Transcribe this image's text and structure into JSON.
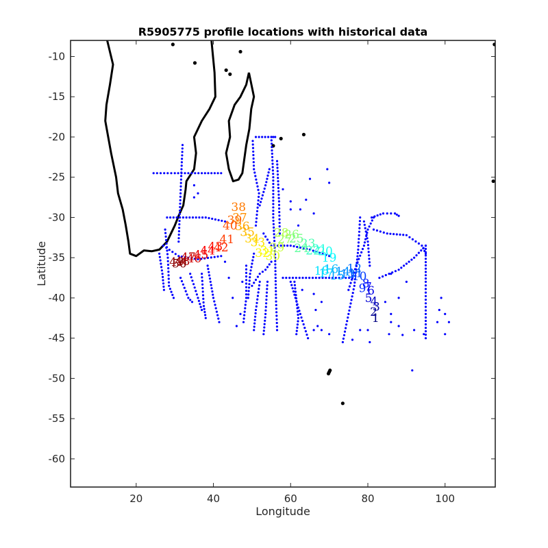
{
  "chart_data": {
    "type": "scatter",
    "title": "R5905775 profile locations with historical data",
    "xlabel": "Longitude",
    "ylabel": "Latitude",
    "xlim": [
      3,
      113
    ],
    "ylim": [
      -63.5,
      -8
    ],
    "xticks": [
      20,
      40,
      60,
      80,
      100
    ],
    "yticks": [
      -10,
      -15,
      -20,
      -25,
      -30,
      -35,
      -40,
      -45,
      -50,
      -55,
      -60
    ],
    "xtick_labels": [
      "20",
      "40",
      "60",
      "80",
      "100"
    ],
    "ytick_labels": [
      "-10",
      "-15",
      "-20",
      "-25",
      "-30",
      "-35",
      "-40",
      "-45",
      "-50",
      "-55",
      "-60"
    ],
    "grid": false,
    "legend": "none",
    "colors": {
      "historical": "#0000ff",
      "coastline": "#000000",
      "track_start": "#00008f",
      "track_end": "#800000"
    },
    "coastline": [
      {
        "name": "Africa",
        "points": [
          [
            12.5,
            -8
          ],
          [
            14,
            -11
          ],
          [
            13.2,
            -13.5
          ],
          [
            12.3,
            -16
          ],
          [
            12,
            -18
          ],
          [
            13.5,
            -22
          ],
          [
            14.8,
            -25
          ],
          [
            15.3,
            -27
          ],
          [
            16.5,
            -29
          ],
          [
            17.3,
            -31
          ],
          [
            18,
            -33
          ],
          [
            18.4,
            -34.5
          ],
          [
            20,
            -34.8
          ],
          [
            22,
            -34.1
          ],
          [
            24,
            -34.2
          ],
          [
            26,
            -34
          ],
          [
            28,
            -33
          ],
          [
            30,
            -31
          ],
          [
            31,
            -29.8
          ],
          [
            32.2,
            -28.5
          ],
          [
            32.8,
            -26.5
          ],
          [
            33,
            -25.5
          ],
          [
            35,
            -24
          ],
          [
            35.5,
            -22
          ],
          [
            35,
            -20
          ],
          [
            37,
            -18
          ],
          [
            39,
            -16.5
          ],
          [
            40.5,
            -15
          ],
          [
            40.3,
            -12
          ],
          [
            39.5,
            -8
          ]
        ]
      },
      {
        "name": "Madagascar",
        "points": [
          [
            49.2,
            -12
          ],
          [
            50.5,
            -15
          ],
          [
            49.8,
            -16.5
          ],
          [
            49.3,
            -19
          ],
          [
            48.5,
            -21
          ],
          [
            47.5,
            -24.5
          ],
          [
            46.5,
            -25.3
          ],
          [
            45.1,
            -25.5
          ],
          [
            44,
            -24
          ],
          [
            43.3,
            -22
          ],
          [
            44.3,
            -20
          ],
          [
            44,
            -18
          ],
          [
            45.5,
            -16
          ],
          [
            47,
            -15
          ],
          [
            48.5,
            -13.5
          ],
          [
            49.2,
            -12
          ]
        ]
      }
    ],
    "islands": [
      [
        70,
        -49.2
      ],
      [
        69.8,
        -49.4
      ],
      [
        70.2,
        -49.0
      ],
      [
        73.5,
        -53.1
      ],
      [
        57.5,
        -20.2
      ],
      [
        55.5,
        -21.1
      ],
      [
        63.4,
        -19.7
      ],
      [
        44.3,
        -12.2
      ],
      [
        43.3,
        -11.7
      ],
      [
        112.5,
        -25.5
      ],
      [
        112.8,
        -8.5
      ],
      [
        29.5,
        -8.5
      ],
      [
        47,
        -9.4
      ],
      [
        35.2,
        -10.8
      ]
    ],
    "float_profiles": [
      {
        "n": 1,
        "lon": 82,
        "lat": -43
      },
      {
        "n": 2,
        "lon": 81.5,
        "lat": -42.2
      },
      {
        "n": 3,
        "lon": 82.2,
        "lat": -41.6
      },
      {
        "n": 4,
        "lon": 81.6,
        "lat": -40.9
      },
      {
        "n": 5,
        "lon": 80.2,
        "lat": -40.5
      },
      {
        "n": 6,
        "lon": 80.8,
        "lat": -39.6
      },
      {
        "n": 7,
        "lon": 80.1,
        "lat": -39.1
      },
      {
        "n": 8,
        "lon": 79.5,
        "lat": -38.7
      },
      {
        "n": 9,
        "lon": 78.6,
        "lat": -39.3
      },
      {
        "n": 10,
        "lon": 77.8,
        "lat": -37.8
      },
      {
        "n": 11,
        "lon": 76.8,
        "lat": -37.4
      },
      {
        "n": 12,
        "lon": 76.5,
        "lat": -36.8
      },
      {
        "n": 13,
        "lon": 74.8,
        "lat": -37.5
      },
      {
        "n": 14,
        "lon": 73.5,
        "lat": -37.2
      },
      {
        "n": 15,
        "lon": 72,
        "lat": -37.7
      },
      {
        "n": 16,
        "lon": 70.5,
        "lat": -36.9
      },
      {
        "n": 17,
        "lon": 69.2,
        "lat": -37.4
      },
      {
        "n": 18,
        "lon": 68,
        "lat": -37.1
      },
      {
        "n": 19,
        "lon": 70,
        "lat": -35.5
      },
      {
        "n": 20,
        "lon": 69,
        "lat": -34.7
      },
      {
        "n": 21,
        "lon": 67.5,
        "lat": -34.4
      },
      {
        "n": 22,
        "lon": 65.8,
        "lat": -34.6
      },
      {
        "n": 23,
        "lon": 64.5,
        "lat": -33.7
      },
      {
        "n": 24,
        "lon": 62.8,
        "lat": -34.3
      },
      {
        "n": 25,
        "lon": 61.5,
        "lat": -33.1
      },
      {
        "n": 26,
        "lon": 60.3,
        "lat": -32.6
      },
      {
        "n": 27,
        "lon": 58.5,
        "lat": -33.2
      },
      {
        "n": 28,
        "lon": 57.6,
        "lat": -32.4
      },
      {
        "n": 29,
        "lon": 56.5,
        "lat": -34.2
      },
      {
        "n": 30,
        "lon": 55.4,
        "lat": -35.3
      },
      {
        "n": 31,
        "lon": 54,
        "lat": -34.6
      },
      {
        "n": 32,
        "lon": 52.7,
        "lat": -34.9
      },
      {
        "n": 33,
        "lon": 51.5,
        "lat": -33.6
      },
      {
        "n": 34,
        "lon": 50,
        "lat": -33.1
      },
      {
        "n": 35,
        "lon": 48.8,
        "lat": -32.3
      },
      {
        "n": 36,
        "lon": 47.5,
        "lat": -31.6
      },
      {
        "n": 37,
        "lon": 46.8,
        "lat": -30.5
      },
      {
        "n": 38,
        "lon": 46.5,
        "lat": -29.2
      },
      {
        "n": 39,
        "lon": 45.5,
        "lat": -30.8
      },
      {
        "n": 40,
        "lon": 44.3,
        "lat": -31.5
      },
      {
        "n": 41,
        "lon": 43.5,
        "lat": -33.2
      },
      {
        "n": 42,
        "lon": 42,
        "lat": -34.2
      },
      {
        "n": 43,
        "lon": 40.5,
        "lat": -34.1
      },
      {
        "n": 44,
        "lon": 38.5,
        "lat": -34.6
      },
      {
        "n": 45,
        "lon": 36.8,
        "lat": -35.1
      },
      {
        "n": 46,
        "lon": 35,
        "lat": -35.6
      },
      {
        "n": 47,
        "lon": 33.5,
        "lat": -35.4
      },
      {
        "n": 48,
        "lon": 32,
        "lat": -35.9
      },
      {
        "n": 49,
        "lon": 30.5,
        "lat": -36
      },
      {
        "n": 50,
        "lon": 31.2,
        "lat": -36.2
      }
    ],
    "historical_tracks": [
      [
        [
          24.5,
          -24.5
        ],
        [
          30,
          -24.5
        ],
        [
          37,
          -24.5
        ],
        [
          42,
          -24.5
        ]
      ],
      [
        [
          28,
          -30
        ],
        [
          33,
          -30
        ],
        [
          38,
          -30
        ],
        [
          43,
          -30.5
        ]
      ],
      [
        [
          27,
          -33.5
        ],
        [
          31,
          -34.8
        ],
        [
          36,
          -35.2
        ],
        [
          42,
          -34.8
        ]
      ],
      [
        [
          27.5,
          -31.5
        ],
        [
          28.2,
          -35
        ],
        [
          28.5,
          -38.5
        ],
        [
          29.7,
          -40
        ]
      ],
      [
        [
          26,
          -34.5
        ],
        [
          26.8,
          -37
        ],
        [
          27.2,
          -39
        ]
      ],
      [
        [
          32,
          -21
        ],
        [
          31.5,
          -27
        ],
        [
          31,
          -33
        ]
      ],
      [
        [
          51,
          -20
        ],
        [
          55,
          -20
        ],
        [
          56,
          -20
        ]
      ],
      [
        [
          50.2,
          -20.5
        ],
        [
          50.5,
          -24
        ],
        [
          51.8,
          -27
        ],
        [
          51,
          -31
        ]
      ],
      [
        [
          52,
          -28.5
        ],
        [
          53.5,
          -26
        ],
        [
          54.5,
          -24
        ]
      ],
      [
        [
          55,
          -20
        ],
        [
          55.5,
          -25
        ],
        [
          55.5,
          -30
        ],
        [
          56,
          -35
        ],
        [
          56.2,
          -40
        ],
        [
          56.5,
          -44
        ]
      ],
      [
        [
          56.5,
          -23
        ],
        [
          57,
          -28
        ],
        [
          57.2,
          -32
        ]
      ],
      [
        [
          53,
          -32
        ],
        [
          55,
          -33.5
        ],
        [
          60,
          -33.5
        ],
        [
          65,
          -34
        ],
        [
          70,
          -34.8
        ]
      ],
      [
        [
          58,
          -37.5
        ],
        [
          64,
          -37.5
        ],
        [
          70,
          -37.5
        ],
        [
          76,
          -37.5
        ]
      ],
      [
        [
          75,
          -39
        ],
        [
          77,
          -36
        ],
        [
          79,
          -33.5
        ],
        [
          80,
          -31.5
        ],
        [
          81.5,
          -30
        ]
      ],
      [
        [
          81.5,
          -31.5
        ],
        [
          85,
          -32
        ],
        [
          90,
          -32.2
        ],
        [
          94,
          -33.5
        ],
        [
          95,
          -34.5
        ]
      ],
      [
        [
          81,
          -30
        ],
        [
          84,
          -29.5
        ],
        [
          87,
          -29.5
        ],
        [
          88,
          -29.8
        ]
      ],
      [
        [
          95,
          -33.5
        ],
        [
          95,
          -38
        ],
        [
          95,
          -42
        ],
        [
          95,
          -45
        ]
      ],
      [
        [
          95,
          -33.5
        ],
        [
          92,
          -35
        ],
        [
          88,
          -36.5
        ],
        [
          83,
          -37.5
        ]
      ],
      [
        [
          78,
          -30
        ],
        [
          77.5,
          -34
        ],
        [
          76.5,
          -38.5
        ],
        [
          75,
          -42
        ],
        [
          73.5,
          -45.5
        ]
      ],
      [
        [
          49,
          -40
        ],
        [
          49.5,
          -37
        ],
        [
          50.5,
          -34.5
        ]
      ],
      [
        [
          50,
          -38.5
        ],
        [
          52,
          -37
        ],
        [
          53.5,
          -36.5
        ],
        [
          55,
          -35.5
        ]
      ],
      [
        [
          48.5,
          -36
        ],
        [
          48.5,
          -40
        ],
        [
          47.8,
          -43
        ]
      ],
      [
        [
          52,
          -38
        ],
        [
          51,
          -41.5
        ],
        [
          50.5,
          -44
        ]
      ],
      [
        [
          54,
          -38
        ],
        [
          53.5,
          -42
        ],
        [
          53,
          -44.5
        ]
      ],
      [
        [
          60,
          -38
        ],
        [
          62.5,
          -42
        ],
        [
          64.5,
          -45
        ]
      ],
      [
        [
          61,
          -38
        ],
        [
          62,
          -42.5
        ],
        [
          61.5,
          -44.5
        ]
      ],
      [
        [
          38.5,
          -36
        ],
        [
          40,
          -40
        ],
        [
          41.5,
          -43
        ]
      ],
      [
        [
          37,
          -37
        ],
        [
          37.5,
          -41
        ],
        [
          38,
          -42.5
        ]
      ],
      [
        [
          34,
          -37
        ],
        [
          36,
          -40
        ],
        [
          37,
          -41.5
        ]
      ],
      [
        [
          31.5,
          -37.5
        ],
        [
          33.5,
          -40
        ],
        [
          34.5,
          -40.5
        ]
      ],
      [
        [
          79,
          -30.5
        ],
        [
          80,
          -33
        ],
        [
          80.5,
          -36
        ]
      ]
    ],
    "historical_scatter": [
      [
        69.5,
        -24
      ],
      [
        70,
        -25.7
      ],
      [
        65,
        -25.2
      ],
      [
        64,
        -27.8
      ],
      [
        62.5,
        -29
      ],
      [
        60,
        -28
      ],
      [
        58,
        -26.5
      ],
      [
        66,
        -29.5
      ],
      [
        80,
        -44
      ],
      [
        85.5,
        -44.5
      ],
      [
        86,
        -43
      ],
      [
        88,
        -43.5
      ],
      [
        89,
        -44.6
      ],
      [
        92,
        -44
      ],
      [
        94.5,
        -44.5
      ],
      [
        98,
        -43
      ],
      [
        100,
        -42
      ],
      [
        101,
        -43
      ],
      [
        100,
        -44.5
      ],
      [
        91.5,
        -49
      ],
      [
        80.5,
        -45.5
      ],
      [
        78,
        -44
      ],
      [
        66,
        -44
      ],
      [
        67,
        -43.5
      ],
      [
        68,
        -44
      ],
      [
        70,
        -44.5
      ],
      [
        76,
        -45.2
      ],
      [
        99,
        -40
      ],
      [
        98.5,
        -41.5
      ],
      [
        86,
        -37
      ],
      [
        88,
        -40
      ],
      [
        90,
        -38
      ],
      [
        84.5,
        -40.5
      ],
      [
        86,
        -42
      ],
      [
        60,
        -29
      ],
      [
        62,
        -31
      ],
      [
        35,
        -27.5
      ],
      [
        35,
        -26
      ],
      [
        36,
        -27
      ],
      [
        47.5,
        -38
      ],
      [
        47,
        -42
      ],
      [
        46,
        -43.5
      ],
      [
        44,
        -37.5
      ],
      [
        45,
        -40
      ],
      [
        43,
        -35.5
      ],
      [
        66.5,
        -41.5
      ],
      [
        66,
        -39.5
      ],
      [
        68,
        -40.5
      ],
      [
        63,
        -39
      ]
    ]
  }
}
